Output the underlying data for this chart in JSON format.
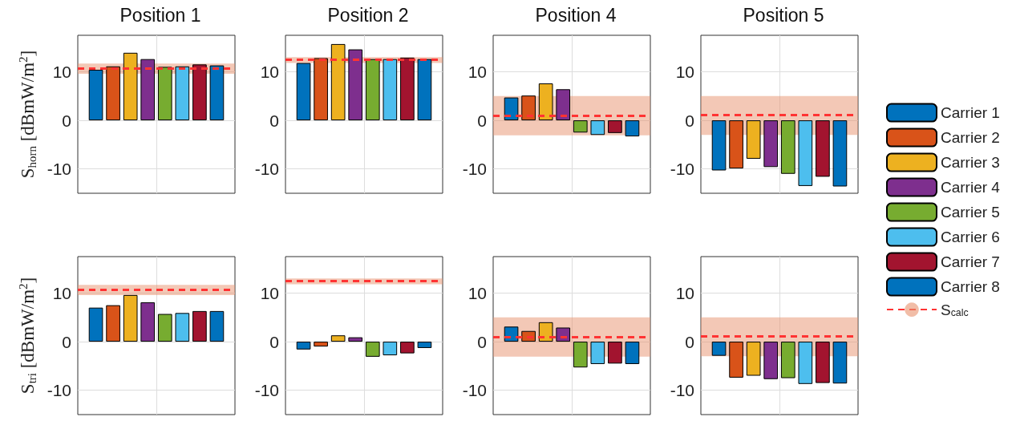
{
  "chart_data": [
    {
      "type": "bar",
      "title": "Position 1",
      "ylabel": "S$_{horn}$ [dBmW/m$^{2}$]",
      "categories": [
        null
      ],
      "ylim": [
        -15,
        17.5
      ],
      "yticks": [
        -10,
        0,
        10
      ],
      "grid": true,
      "tick_labels": "y",
      "series": [
        {
          "color": "#0072bd",
          "values": [
            10.4
          ]
        },
        {
          "color": "#d95319",
          "values": [
            11.1
          ]
        },
        {
          "color": "#edb120",
          "values": [
            13.9
          ]
        },
        {
          "color": "#7e2f8e",
          "values": [
            12.6
          ]
        },
        {
          "color": "#77ac30",
          "values": [
            11.0
          ]
        },
        {
          "color": "#4dbeee",
          "values": [
            11.1
          ]
        },
        {
          "color": "#a2142f",
          "values": [
            11.5
          ]
        },
        {
          "color": "#0072bd",
          "values": [
            11.3
          ]
        }
      ],
      "ref_lines": [
        {
          "axis": "y",
          "value": 10.7,
          "color": "#ff3333",
          "line_style": "dashed"
        }
      ],
      "bands": [
        {
          "axis": "y",
          "from": 9.6,
          "to": 11.7,
          "color": "#e8916d"
        }
      ]
    },
    {
      "type": "bar",
      "title": "Position 2",
      "categories": [
        null
      ],
      "ylim": [
        -15,
        17.5
      ],
      "yticks": [
        -10,
        0,
        10
      ],
      "grid": true,
      "tick_labels": "y",
      "series": [
        {
          "color": "#0072bd",
          "values": [
            11.8
          ]
        },
        {
          "color": "#d95319",
          "values": [
            12.8
          ]
        },
        {
          "color": "#edb120",
          "values": [
            15.7
          ]
        },
        {
          "color": "#7e2f8e",
          "values": [
            14.6
          ]
        },
        {
          "color": "#77ac30",
          "values": [
            12.6
          ]
        },
        {
          "color": "#4dbeee",
          "values": [
            12.6
          ]
        },
        {
          "color": "#a2142f",
          "values": [
            12.9
          ]
        },
        {
          "color": "#0072bd",
          "values": [
            12.6
          ]
        }
      ],
      "ref_lines": [
        {
          "axis": "y",
          "value": 12.5,
          "color": "#ff3333",
          "line_style": "dashed"
        }
      ],
      "bands": [
        {
          "axis": "y",
          "from": 11.8,
          "to": 13.0,
          "color": "#e8916d"
        }
      ]
    },
    {
      "type": "bar",
      "title": "Position 4",
      "categories": [
        null
      ],
      "ylim": [
        -15,
        17.5
      ],
      "yticks": [
        -10,
        0,
        10
      ],
      "grid": true,
      "tick_labels": "y",
      "series": [
        {
          "color": "#0072bd",
          "values": [
            4.7
          ]
        },
        {
          "color": "#d95319",
          "values": [
            5.1
          ]
        },
        {
          "color": "#edb120",
          "values": [
            7.6
          ]
        },
        {
          "color": "#7e2f8e",
          "values": [
            6.4
          ]
        },
        {
          "color": "#77ac30",
          "values": [
            -2.5
          ]
        },
        {
          "color": "#4dbeee",
          "values": [
            -3.0
          ]
        },
        {
          "color": "#a2142f",
          "values": [
            -2.6
          ]
        },
        {
          "color": "#0072bd",
          "values": [
            -3.3
          ]
        }
      ],
      "ref_lines": [
        {
          "axis": "y",
          "value": 0.9,
          "color": "#ff3333",
          "line_style": "dashed"
        }
      ],
      "bands": [
        {
          "axis": "y",
          "from": -3.1,
          "to": 5.0,
          "color": "#e8916d"
        }
      ]
    },
    {
      "type": "bar",
      "title": "Position 5",
      "categories": [
        null
      ],
      "ylim": [
        -15,
        17.5
      ],
      "yticks": [
        -10,
        0,
        10
      ],
      "grid": true,
      "tick_labels": "y",
      "legend": "right",
      "series": [
        {
          "name": "Carrier 1",
          "color": "#0072bd",
          "values": [
            -10.3
          ]
        },
        {
          "name": "Carrier 2",
          "color": "#d95319",
          "values": [
            -9.9
          ]
        },
        {
          "name": "Carrier 3",
          "color": "#edb120",
          "values": [
            -7.9
          ]
        },
        {
          "name": "Carrier 4",
          "color": "#7e2f8e",
          "values": [
            -9.6
          ]
        },
        {
          "name": "Carrier 5",
          "color": "#77ac30",
          "values": [
            -11.0
          ]
        },
        {
          "name": "Carrier 6",
          "color": "#4dbeee",
          "values": [
            -13.5
          ]
        },
        {
          "name": "Carrier 7",
          "color": "#a2142f",
          "values": [
            -11.6
          ]
        },
        {
          "name": "Carrier 8",
          "color": "#0072bd",
          "values": [
            -13.6
          ]
        }
      ],
      "ref_lines": [
        {
          "axis": "y",
          "value": 1.1,
          "label": "S$_{calc}$",
          "color": "#ff3333",
          "line_style": "dashed"
        }
      ],
      "bands": [
        {
          "axis": "y",
          "from": -3.0,
          "to": 5.0,
          "color": "#e8916d"
        }
      ]
    },
    {
      "type": "bar",
      "ylabel": "S$_{tri}$ [dBmW/m$^{2}$]",
      "categories": [
        null
      ],
      "ylim": [
        -15,
        17.5
      ],
      "yticks": [
        -10,
        0,
        10
      ],
      "grid": true,
      "tick_labels": "y",
      "series": [
        {
          "color": "#0072bd",
          "values": [
            7.0
          ]
        },
        {
          "color": "#d95319",
          "values": [
            7.5
          ]
        },
        {
          "color": "#edb120",
          "values": [
            9.6
          ]
        },
        {
          "color": "#7e2f8e",
          "values": [
            8.1
          ]
        },
        {
          "color": "#77ac30",
          "values": [
            5.7
          ]
        },
        {
          "color": "#4dbeee",
          "values": [
            5.9
          ]
        },
        {
          "color": "#a2142f",
          "values": [
            6.3
          ]
        },
        {
          "color": "#0072bd",
          "values": [
            6.3
          ]
        }
      ],
      "ref_lines": [
        {
          "axis": "y",
          "value": 10.7,
          "color": "#ff3333",
          "line_style": "dashed"
        }
      ],
      "bands": [
        {
          "axis": "y",
          "from": 9.6,
          "to": 11.7,
          "color": "#e8916d"
        }
      ]
    },
    {
      "type": "bar",
      "categories": [
        null
      ],
      "ylim": [
        -15,
        17.5
      ],
      "yticks": [
        -10,
        0,
        10
      ],
      "grid": true,
      "tick_labels": "y",
      "series": [
        {
          "color": "#0072bd",
          "values": [
            -1.6
          ]
        },
        {
          "color": "#d95319",
          "values": [
            -1.0
          ]
        },
        {
          "color": "#edb120",
          "values": [
            1.3
          ]
        },
        {
          "color": "#7e2f8e",
          "values": [
            0.9
          ]
        },
        {
          "color": "#77ac30",
          "values": [
            -3.1
          ]
        },
        {
          "color": "#4dbeee",
          "values": [
            -2.8
          ]
        },
        {
          "color": "#a2142f",
          "values": [
            -2.4
          ]
        },
        {
          "color": "#0072bd",
          "values": [
            -1.3
          ]
        }
      ],
      "ref_lines": [
        {
          "axis": "y",
          "value": 12.5,
          "color": "#ff3333",
          "line_style": "dashed"
        }
      ],
      "bands": [
        {
          "axis": "y",
          "from": 11.8,
          "to": 13.0,
          "color": "#e8916d"
        }
      ]
    },
    {
      "type": "bar",
      "categories": [
        null
      ],
      "ylim": [
        -15,
        17.5
      ],
      "yticks": [
        -10,
        0,
        10
      ],
      "grid": true,
      "tick_labels": "y",
      "series": [
        {
          "color": "#0072bd",
          "values": [
            3.1
          ]
        },
        {
          "color": "#d95319",
          "values": [
            2.2
          ]
        },
        {
          "color": "#edb120",
          "values": [
            4.0
          ]
        },
        {
          "color": "#7e2f8e",
          "values": [
            2.9
          ]
        },
        {
          "color": "#77ac30",
          "values": [
            -5.3
          ]
        },
        {
          "color": "#4dbeee",
          "values": [
            -4.6
          ]
        },
        {
          "color": "#a2142f",
          "values": [
            -4.5
          ]
        },
        {
          "color": "#0072bd",
          "values": [
            -4.6
          ]
        }
      ],
      "ref_lines": [
        {
          "axis": "y",
          "value": 0.9,
          "color": "#ff3333",
          "line_style": "dashed"
        }
      ],
      "bands": [
        {
          "axis": "y",
          "from": -3.1,
          "to": 5.0,
          "color": "#e8916d"
        }
      ]
    },
    {
      "type": "bar",
      "categories": [
        null
      ],
      "ylim": [
        -15,
        17.5
      ],
      "yticks": [
        -10,
        0,
        10
      ],
      "grid": true,
      "tick_labels": "y",
      "series": [
        {
          "color": "#0072bd",
          "values": [
            -2.9
          ]
        },
        {
          "color": "#d95319",
          "values": [
            -7.4
          ]
        },
        {
          "color": "#edb120",
          "values": [
            -7.0
          ]
        },
        {
          "color": "#7e2f8e",
          "values": [
            -7.7
          ]
        },
        {
          "color": "#77ac30",
          "values": [
            -7.5
          ]
        },
        {
          "color": "#4dbeee",
          "values": [
            -8.7
          ]
        },
        {
          "color": "#a2142f",
          "values": [
            -8.5
          ]
        },
        {
          "color": "#0072bd",
          "values": [
            -8.6
          ]
        }
      ],
      "ref_lines": [
        {
          "axis": "y",
          "value": 1.1,
          "color": "#ff3333",
          "line_style": "dashed"
        }
      ],
      "bands": [
        {
          "axis": "y",
          "from": -3.0,
          "to": 5.0,
          "color": "#e8916d"
        }
      ]
    }
  ]
}
